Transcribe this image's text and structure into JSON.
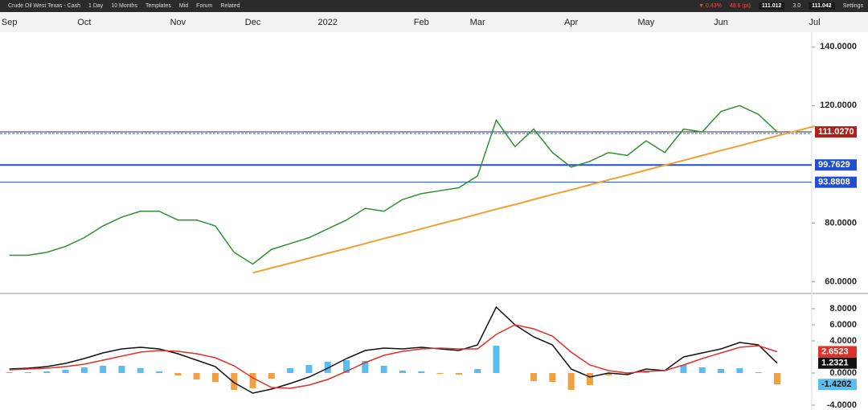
{
  "toolbar": {
    "instrument": "Crude Oil West Texas - Cash",
    "interval": "1 Day",
    "range": "10 Months",
    "templates": "Templates",
    "price_mode": "Mid",
    "forum": "Forum",
    "related": "Related",
    "change": "▼ 0.43%",
    "change_pt": "48.6 (pt)",
    "bid": "111.012",
    "spread": "3.0",
    "ask": "111.042",
    "settings": "Settings"
  },
  "chart_data": [
    {
      "type": "line",
      "categories": [
        "Sep",
        null,
        null,
        null,
        "Oct",
        null,
        null,
        null,
        null,
        "Nov",
        null,
        null,
        null,
        "Dec",
        null,
        null,
        null,
        "2022",
        null,
        null,
        null,
        null,
        "Feb",
        null,
        null,
        "Mar",
        null,
        null,
        null,
        null,
        "Apr",
        null,
        null,
        null,
        "May",
        null,
        null,
        null,
        "Jun",
        null,
        null,
        null,
        null,
        "Jul"
      ],
      "series": [
        {
          "name": "Price",
          "color": "#2f8f2f",
          "values": [
            69,
            69,
            70,
            72,
            75,
            79,
            82,
            84,
            84,
            81,
            81,
            79,
            70,
            66,
            71,
            73,
            75,
            78,
            81,
            85,
            84,
            88,
            90,
            91,
            92,
            96,
            115,
            106,
            112,
            104,
            99,
            101,
            104,
            103,
            108,
            104,
            112,
            111,
            118,
            120,
            117,
            111.027,
            null,
            null
          ]
        },
        {
          "name": "Trend",
          "color": "#f0a030",
          "values": [
            null,
            null,
            null,
            null,
            null,
            null,
            null,
            null,
            null,
            null,
            null,
            null,
            null,
            63,
            64.7,
            66.3,
            68,
            69.7,
            71.3,
            73,
            74.7,
            76.3,
            78,
            79.7,
            81.3,
            83,
            84.7,
            86.3,
            88,
            89.7,
            91.3,
            93,
            94.7,
            96.3,
            98,
            99.7,
            101.3,
            103,
            104.7,
            106.3,
            108,
            109.7,
            111.3,
            113
          ]
        }
      ],
      "levels": [
        {
          "value": 111.027,
          "label": "111.0270",
          "color": "#b0201a"
        },
        {
          "value": 110.5,
          "color": "#3060d0",
          "dashed": true
        },
        {
          "value": 99.7629,
          "label": "99.7629",
          "color": "#1f4fd0"
        },
        {
          "value": 93.8808,
          "label": "93.8808",
          "color": "#1f4fd0"
        }
      ],
      "ylim": [
        56,
        145
      ],
      "yticks": [
        {
          "value": 140,
          "label": "140.0000"
        },
        {
          "value": 120,
          "label": "120.0000"
        },
        {
          "value": 80,
          "label": "80.0000"
        },
        {
          "value": 60,
          "label": "60.0000"
        }
      ]
    },
    {
      "type": "macd",
      "series": [
        {
          "name": "MACD",
          "color": "#111111",
          "values": [
            0.5,
            0.6,
            0.8,
            1.2,
            1.8,
            2.5,
            3.0,
            3.2,
            3.0,
            2.4,
            1.6,
            0.8,
            -1.2,
            -2.5,
            -2.0,
            -1.3,
            -0.5,
            0.6,
            1.8,
            2.8,
            3.1,
            3.0,
            3.2,
            3.0,
            2.8,
            3.5,
            8.2,
            6.0,
            4.5,
            3.5,
            0.5,
            -0.5,
            0.0,
            -0.2,
            0.5,
            0.3,
            2.0,
            2.5,
            3.0,
            3.8,
            3.5,
            1.2321,
            null,
            null
          ]
        },
        {
          "name": "Signal",
          "color": "#e0302a",
          "values": [
            0.4,
            0.5,
            0.6,
            0.8,
            1.1,
            1.6,
            2.1,
            2.6,
            2.8,
            2.7,
            2.4,
            1.9,
            0.9,
            -0.6,
            -1.8,
            -1.9,
            -1.5,
            -0.8,
            0.2,
            1.3,
            2.2,
            2.7,
            3.0,
            3.1,
            3.0,
            3.0,
            4.8,
            6.0,
            5.5,
            4.6,
            2.6,
            1.0,
            0.3,
            0.0,
            0.2,
            0.3,
            1.0,
            1.8,
            2.5,
            3.2,
            3.4,
            2.6523,
            null,
            null
          ]
        },
        {
          "name": "Histogram",
          "color": "#5bbcf0",
          "negative_color": "#f0a040",
          "values": [
            0.1,
            0.1,
            0.2,
            0.4,
            0.7,
            0.9,
            0.9,
            0.6,
            0.2,
            -0.3,
            -0.8,
            -1.1,
            -2.1,
            -1.9,
            -0.7,
            0.6,
            1.0,
            1.4,
            1.6,
            1.5,
            0.9,
            0.3,
            0.2,
            -0.1,
            -0.2,
            0.5,
            3.4,
            0,
            -1.0,
            -1.1,
            -2.1,
            -1.5,
            -0.3,
            -0.2,
            0.3,
            0,
            1.0,
            0.7,
            0.5,
            0.6,
            0.1,
            -1.4202,
            null,
            null
          ]
        }
      ],
      "ylim": [
        -4.6,
        9.7
      ],
      "yticks": [
        {
          "value": 8,
          "label": "8.0000"
        },
        {
          "value": 6,
          "label": "6.0000"
        },
        {
          "value": 4,
          "label": "4.0000"
        },
        {
          "value": 0,
          "label": "0.0000"
        },
        {
          "value": -4,
          "label": "-4.0000"
        }
      ]
    }
  ]
}
